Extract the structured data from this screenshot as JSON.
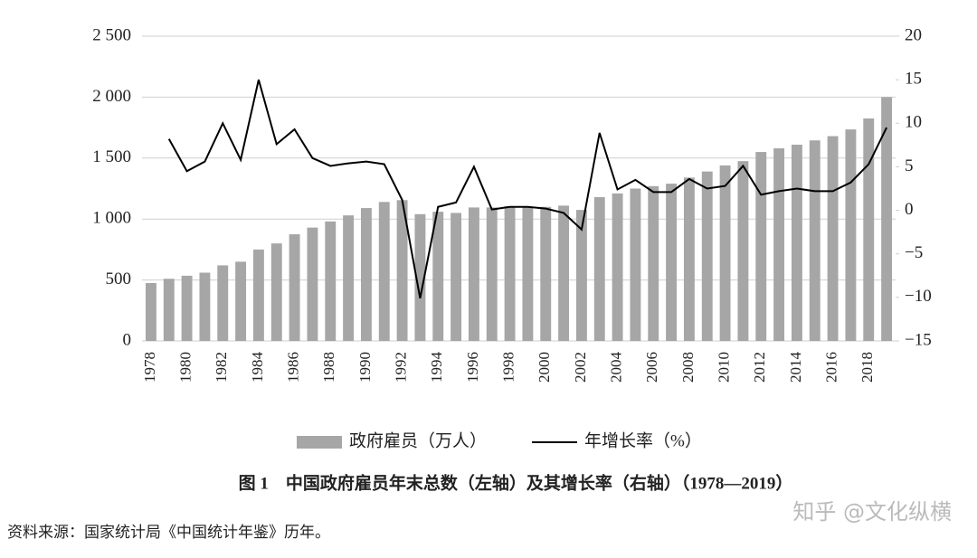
{
  "chart_data": {
    "type": "bar_line",
    "title": "图 1　中国政府雇员年末总数（左轴）及其增长率（右轴）（1978—2019）",
    "source": "资料来源：国家统计局《中国统计年鉴》历年。",
    "watermark": "知乎 @文化纵横",
    "categories": [
      "1978",
      null,
      "1980",
      null,
      "1982",
      null,
      "1984",
      null,
      "1986",
      null,
      "1988",
      null,
      "1990",
      null,
      "1992",
      null,
      "1994",
      null,
      "1996",
      null,
      "1998",
      null,
      "2000",
      null,
      "2002",
      null,
      "2004",
      null,
      "2006",
      null,
      "2008",
      null,
      "2010",
      null,
      "2012",
      null,
      "2014",
      null,
      "2016",
      null,
      "2018",
      null
    ],
    "series": [
      {
        "name": "政府雇员（万人）",
        "color": "#a6a6a6",
        "kind": "bar",
        "values": [
          475,
          510,
          535,
          560,
          620,
          650,
          750,
          800,
          875,
          930,
          980,
          1030,
          1090,
          1140,
          1155,
          1040,
          1060,
          1050,
          1095,
          1095,
          1105,
          1100,
          1100,
          1110,
          1075,
          1180,
          1210,
          1250,
          1270,
          1290,
          1340,
          1390,
          1440,
          1475,
          1550,
          1580,
          1610,
          1645,
          1680,
          1735,
          1825,
          2000
        ]
      },
      {
        "name": "年增长率（%）",
        "color": "#000000",
        "kind": "line",
        "axis": "y2",
        "values": [
          null,
          8.2,
          4.5,
          5.6,
          10,
          5.8,
          15,
          7.6,
          9.3,
          6,
          5.1,
          5.4,
          5.6,
          5.3,
          1.2,
          -10.1,
          0.4,
          0.9,
          5,
          0.1,
          0.4,
          0.4,
          0.2,
          -0.3,
          -2.2,
          8.9,
          2.4,
          3.5,
          2.1,
          2.1,
          3.6,
          2.5,
          2.8,
          5.1,
          1.8,
          2.2,
          2.5,
          2.2,
          2.2,
          3.2,
          5.3,
          9.5
        ]
      }
    ],
    "ylim": [
      0,
      2500
    ],
    "yticks": [
      0,
      500,
      {
        "value": 1000,
        "label": "1 000"
      },
      {
        "value": 1500,
        "label": "1 500"
      },
      {
        "value": 2000,
        "label": "2 000"
      },
      {
        "value": 2500,
        "label": "2 500"
      }
    ],
    "y2lim": [
      -15,
      20
    ],
    "y2ticks": [
      {
        "value": -15,
        "label": "−15"
      },
      {
        "value": -10,
        "label": "−10"
      },
      {
        "value": -5,
        "label": "−5"
      },
      0,
      5,
      10,
      15,
      20
    ],
    "grid": true
  }
}
